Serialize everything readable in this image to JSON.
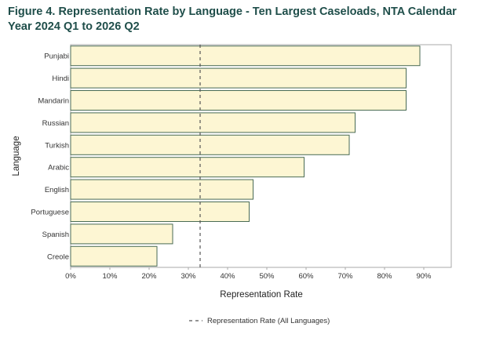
{
  "title": "Figure 4. Representation Rate by Language - Ten Largest Caseloads, NTA Calendar Year 2024 Q1 to 2026 Q2",
  "colors": {
    "bar_fill": "#fdf6d3",
    "bar_stroke": "#4a6b54",
    "reference_line": "#555555",
    "frame": "#aaaaaa"
  },
  "chart_data": {
    "type": "bar",
    "orientation": "horizontal",
    "title": "Figure 4. Representation Rate by Language - Ten Largest Caseloads, NTA Calendar Year 2024 Q1 to 2026 Q2",
    "xlabel": "Representation Rate",
    "ylabel": "Language",
    "categories": [
      "Punjabi",
      "Hindi",
      "Mandarin",
      "Russian",
      "Turkish",
      "Arabic",
      "English",
      "Portuguese",
      "Spanish",
      "Creole"
    ],
    "values": [
      0.89,
      0.855,
      0.855,
      0.725,
      0.71,
      0.595,
      0.465,
      0.455,
      0.26,
      0.22
    ],
    "xlim": [
      0,
      0.97
    ],
    "xticks": [
      0,
      0.1,
      0.2,
      0.3,
      0.4,
      0.5,
      0.6,
      0.7,
      0.8,
      0.9
    ],
    "xtick_labels": [
      "0%",
      "10%",
      "20%",
      "30%",
      "40%",
      "50%",
      "60%",
      "70%",
      "80%",
      "90%"
    ],
    "reference_line": {
      "value": 0.33,
      "label": "Representation Rate (All Languages)",
      "style": "dashed"
    },
    "legend_position": "bottom",
    "grid": false
  }
}
